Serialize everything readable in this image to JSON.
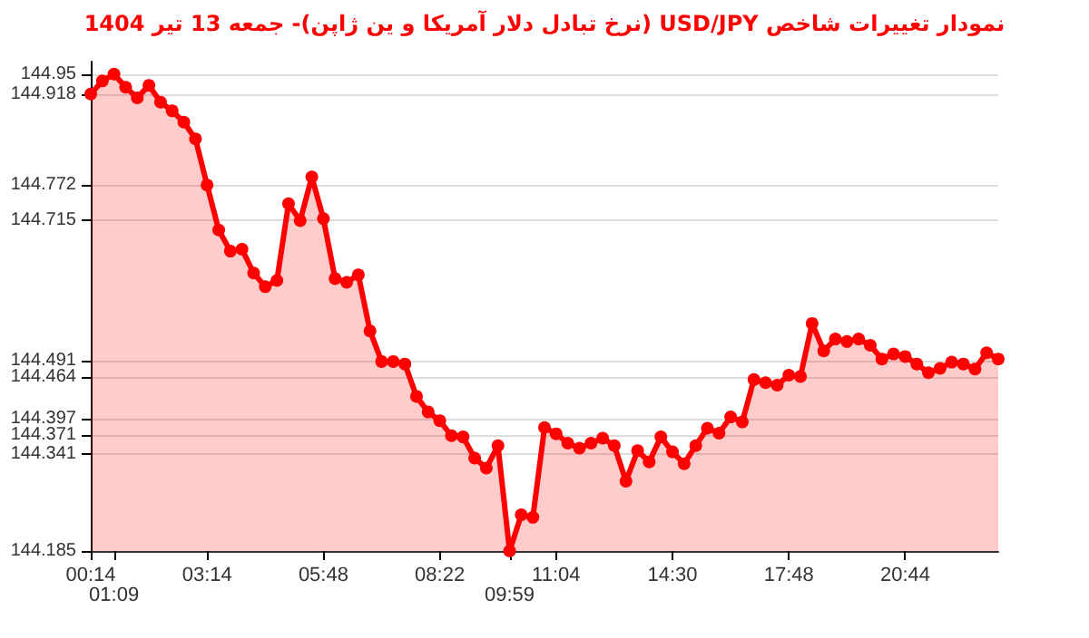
{
  "chart_data": {
    "type": "area",
    "title": "نمودار تغییرات شاخص USD/JPY (نرخ تبادل دلار آمریکا و ین ژاپن)- جمعه  13 تیر 1404",
    "categories": [
      "00:14",
      null,
      "01:09",
      null,
      null,
      null,
      null,
      null,
      null,
      null,
      "03:14",
      null,
      null,
      null,
      null,
      null,
      null,
      null,
      null,
      null,
      "05:48",
      null,
      null,
      null,
      null,
      null,
      null,
      null,
      null,
      null,
      "08:22",
      null,
      null,
      null,
      null,
      null,
      "09:59",
      null,
      null,
      null,
      "11:04",
      null,
      null,
      null,
      null,
      null,
      null,
      null,
      null,
      null,
      "14:30",
      null,
      null,
      null,
      null,
      null,
      null,
      null,
      null,
      null,
      "17:48",
      null,
      null,
      null,
      null,
      null,
      null,
      null,
      null,
      null,
      "20:44",
      null,
      null,
      null,
      null,
      null,
      null,
      null,
      null
    ],
    "series": [
      {
        "color": "#ff0000",
        "values": [
          144.918,
          144.939,
          144.95,
          144.929,
          144.912,
          144.932,
          144.905,
          144.891,
          144.873,
          144.846,
          144.772,
          144.7,
          144.666,
          144.669,
          144.631,
          144.609,
          144.619,
          144.742,
          144.715,
          144.785,
          144.718,
          144.622,
          144.616,
          144.628,
          144.538,
          144.489,
          144.489,
          144.485,
          144.433,
          144.408,
          144.394,
          144.37,
          144.368,
          144.334,
          144.318,
          144.354,
          144.185,
          144.243,
          144.239,
          144.383,
          144.373,
          144.358,
          144.35,
          144.358,
          144.366,
          144.354,
          144.297,
          144.346,
          144.328,
          144.368,
          144.344,
          144.325,
          144.354,
          144.382,
          144.374,
          144.4,
          144.392,
          144.46,
          144.455,
          144.451,
          144.467,
          144.465,
          144.55,
          144.506,
          144.525,
          144.521,
          144.525,
          144.515,
          144.493,
          144.501,
          144.497,
          144.485,
          144.471,
          144.478,
          144.488,
          144.485,
          144.477,
          144.503,
          144.493
        ]
      }
    ],
    "ylim": [
      144.185,
      144.97
    ],
    "yticks": [
      144.185,
      144.341,
      144.371,
      144.397,
      144.464,
      144.491,
      144.715,
      144.772,
      144.918,
      144.95
    ],
    "grid": "y",
    "marker": "circle",
    "line_style": "solid"
  }
}
